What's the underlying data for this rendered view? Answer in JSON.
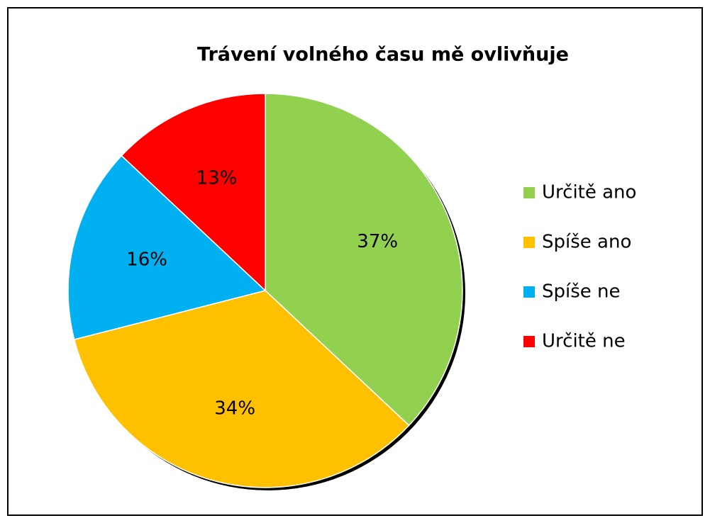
{
  "chart_data": {
    "type": "pie",
    "title": "Trávení volného času mě ovlivňuje",
    "categories": [
      "Určitě ano",
      "Spíše ano",
      "Spíše ne",
      "Určitě ne"
    ],
    "values": [
      37,
      34,
      16,
      13
    ],
    "value_labels": [
      "37%",
      "34%",
      "16%",
      "13%"
    ],
    "colors": [
      "#92d050",
      "#ffc000",
      "#00b0f0",
      "#ff0000"
    ],
    "legend": "right"
  }
}
